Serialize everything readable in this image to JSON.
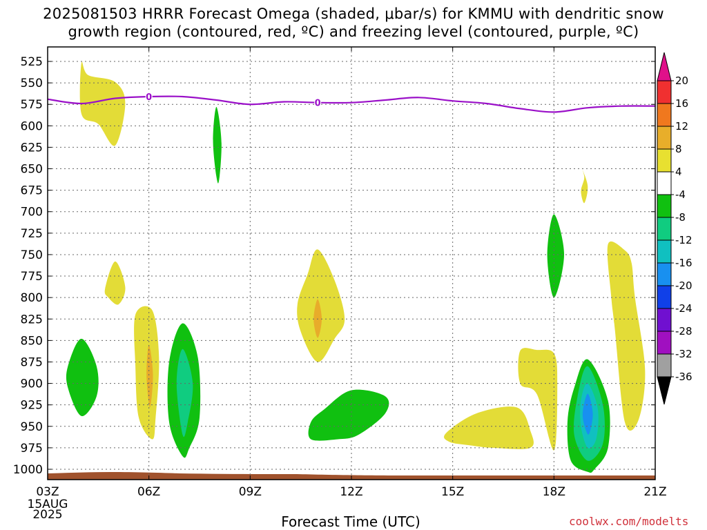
{
  "title": {
    "line1": "2025081503 HRRR Forecast Omega (shaded, μbar/s) for KMMU with dendritic snow",
    "line2": "growth region (contoured, red, ºC) and freezing level (contoured, purple, ºC)"
  },
  "credit": "coolwx.com/modelts",
  "chart_data": {
    "type": "contour-timeheight",
    "xlabel": "Forecast Time (UTC)",
    "ylabel": "",
    "x_range_hours": [
      0,
      18
    ],
    "y_range": [
      1010,
      510
    ],
    "x_ticks": [
      {
        "h": 0,
        "label": "03Z"
      },
      {
        "h": 3,
        "label": "06Z"
      },
      {
        "h": 6,
        "label": "09Z"
      },
      {
        "h": 9,
        "label": "12Z"
      },
      {
        "h": 12,
        "label": "15Z"
      },
      {
        "h": 15,
        "label": "18Z"
      },
      {
        "h": 18,
        "label": "21Z"
      }
    ],
    "x_date_labels": [
      "15AUG",
      "2025"
    ],
    "y_ticks": [
      525,
      550,
      575,
      600,
      625,
      650,
      675,
      700,
      725,
      750,
      775,
      800,
      825,
      850,
      875,
      900,
      925,
      950,
      975,
      1000
    ],
    "grid": true,
    "colorbar": {
      "labels": [
        "20",
        "16",
        "12",
        "8",
        "4",
        "-4",
        "-8",
        "-12",
        "-16",
        "-20",
        "-24",
        "-28",
        "-32",
        "-36"
      ],
      "colors": [
        "#e0108a",
        "#f03030",
        "#f0781e",
        "#e8ae2a",
        "#e8e030",
        "#ffffff",
        "#10c010",
        "#10cc80",
        "#10c0c0",
        "#1890f0",
        "#1040e8",
        "#7010d0",
        "#a010c0",
        "#a0a0a0",
        "#000000"
      ]
    },
    "freezing_level": {
      "label": "0",
      "color": "#9a10c8",
      "points": [
        [
          0,
          569
        ],
        [
          1,
          574
        ],
        [
          2,
          568
        ],
        [
          3,
          566
        ],
        [
          4,
          566
        ],
        [
          5,
          570
        ],
        [
          6,
          575
        ],
        [
          7,
          572
        ],
        [
          8,
          573
        ],
        [
          9,
          573
        ],
        [
          10,
          570
        ],
        [
          11,
          567
        ],
        [
          12,
          571
        ],
        [
          13,
          574
        ],
        [
          14,
          580
        ],
        [
          15,
          584
        ],
        [
          16,
          579
        ],
        [
          17,
          577
        ],
        [
          18,
          577
        ]
      ],
      "label_hours": [
        3,
        8
      ]
    },
    "terrain": {
      "color": "#a0522d"
    },
    "omega_regions": [
      {
        "level": "4",
        "color": "#e3dc37",
        "points": [
          [
            1,
            527
          ],
          [
            1.2,
            541
          ],
          [
            2,
            549
          ],
          [
            2.3,
            574
          ],
          [
            2,
            623
          ],
          [
            1.5,
            598
          ],
          [
            1,
            586
          ]
        ]
      },
      {
        "level": "4",
        "color": "#e3dc37",
        "points": [
          [
            2,
            758
          ],
          [
            2.3,
            788
          ],
          [
            2.1,
            808
          ],
          [
            1.8,
            800
          ],
          [
            1.7,
            790
          ]
        ]
      },
      {
        "level": "4",
        "color": "#e3dc37",
        "points": [
          [
            2.6,
            820
          ],
          [
            3.1,
            815
          ],
          [
            3.3,
            870
          ],
          [
            3.2,
            940
          ],
          [
            3.1,
            965
          ],
          [
            2.7,
            940
          ],
          [
            2.6,
            880
          ]
        ]
      },
      {
        "level": "8",
        "color": "#e8ac2a",
        "points": [
          [
            3,
            855
          ],
          [
            3.12,
            890
          ],
          [
            3.03,
            928
          ],
          [
            2.93,
            890
          ]
        ]
      },
      {
        "level": "4",
        "color": "#e3dc37",
        "points": [
          [
            8,
            744
          ],
          [
            8.5,
            780
          ],
          [
            8.8,
            825
          ],
          [
            8.5,
            848
          ],
          [
            8,
            875
          ],
          [
            7.5,
            840
          ],
          [
            7.4,
            808
          ],
          [
            7.7,
            773
          ]
        ]
      },
      {
        "level": "8",
        "color": "#e8ac2a",
        "points": [
          [
            8,
            802
          ],
          [
            8.12,
            825
          ],
          [
            8,
            847
          ],
          [
            7.88,
            825
          ]
        ]
      },
      {
        "level": "4",
        "color": "#e3dc37",
        "points": [
          [
            11.8,
            958
          ],
          [
            12.7,
            935
          ],
          [
            13.9,
            928
          ],
          [
            14.3,
            955
          ],
          [
            14.3,
            975
          ],
          [
            13.2,
            975
          ],
          [
            12.5,
            972
          ],
          [
            11.9,
            968
          ]
        ]
      },
      {
        "level": "4",
        "color": "#e3dc37",
        "points": [
          [
            15.8,
            647
          ],
          [
            16,
            670
          ],
          [
            15.9,
            690
          ],
          [
            15.8,
            676
          ],
          [
            15.9,
            660
          ]
        ]
      },
      {
        "level": "4",
        "color": "#e3dc37",
        "points": [
          [
            16.6,
            738
          ],
          [
            17.1,
            745
          ],
          [
            17.3,
            760
          ],
          [
            17.4,
            800
          ],
          [
            17.7,
            885
          ],
          [
            17.5,
            943
          ],
          [
            17.1,
            945
          ],
          [
            16.8,
            835
          ],
          [
            16.7,
            800
          ]
        ]
      },
      {
        "level": "4",
        "color": "#e3dc37",
        "points": [
          [
            14,
            862
          ],
          [
            14.5,
            861
          ],
          [
            15,
            865
          ],
          [
            15.1,
            900
          ],
          [
            15,
            978
          ],
          [
            14.5,
            913
          ],
          [
            14,
            900
          ]
        ]
      },
      {
        "level": "-4",
        "color": "#10c010",
        "points": [
          [
            5,
            578
          ],
          [
            5.15,
            620
          ],
          [
            5.05,
            667
          ],
          [
            4.9,
            620
          ]
        ]
      },
      {
        "level": "-4",
        "color": "#10c010",
        "points": [
          [
            1,
            848
          ],
          [
            1.45,
            880
          ],
          [
            1.45,
            915
          ],
          [
            1,
            938
          ],
          [
            0.6,
            905
          ],
          [
            0.6,
            880
          ]
        ]
      },
      {
        "level": "-4",
        "color": "#10c010",
        "points": [
          [
            4,
            830
          ],
          [
            4.45,
            870
          ],
          [
            4.5,
            940
          ],
          [
            4.2,
            975
          ],
          [
            4,
            985
          ],
          [
            3.6,
            945
          ],
          [
            3.6,
            875
          ]
        ]
      },
      {
        "level": "-8",
        "color": "#10cc80",
        "points": [
          [
            4,
            860
          ],
          [
            4.3,
            900
          ],
          [
            4.15,
            945
          ],
          [
            4,
            960
          ],
          [
            3.82,
            900
          ]
        ]
      },
      {
        "level": "-4",
        "color": "#10c010",
        "points": [
          [
            9,
            908
          ],
          [
            10,
            915
          ],
          [
            10,
            935
          ],
          [
            9.2,
            960
          ],
          [
            8.6,
            965
          ],
          [
            7.8,
            965
          ],
          [
            7.8,
            945
          ],
          [
            8.2,
            930
          ]
        ]
      },
      {
        "level": "-4",
        "color": "#10c010",
        "points": [
          [
            15,
            703
          ],
          [
            15.3,
            750
          ],
          [
            15,
            800
          ],
          [
            14.8,
            750
          ]
        ]
      },
      {
        "level": "-4",
        "color": "#10c010",
        "points": [
          [
            16,
            872
          ],
          [
            16.6,
            920
          ],
          [
            16.6,
            975
          ],
          [
            16.2,
            1000
          ],
          [
            16,
            1003
          ],
          [
            15.5,
            990
          ],
          [
            15.4,
            945
          ],
          [
            15.6,
            905
          ]
        ]
      },
      {
        "level": "-8",
        "color": "#10cc80",
        "points": [
          [
            16,
            880
          ],
          [
            16.45,
            925
          ],
          [
            16.45,
            970
          ],
          [
            16,
            990
          ],
          [
            15.6,
            960
          ],
          [
            15.7,
            915
          ]
        ]
      },
      {
        "level": "-12",
        "color": "#10c0c0",
        "points": [
          [
            16,
            900
          ],
          [
            16.3,
            930
          ],
          [
            16.25,
            965
          ],
          [
            16,
            975
          ],
          [
            15.8,
            950
          ],
          [
            15.8,
            920
          ]
        ]
      },
      {
        "level": "-16",
        "color": "#1890f0",
        "points": [
          [
            16,
            912
          ],
          [
            16.15,
            935
          ],
          [
            16.05,
            958
          ],
          [
            15.95,
            955
          ],
          [
            15.85,
            935
          ]
        ]
      }
    ]
  }
}
